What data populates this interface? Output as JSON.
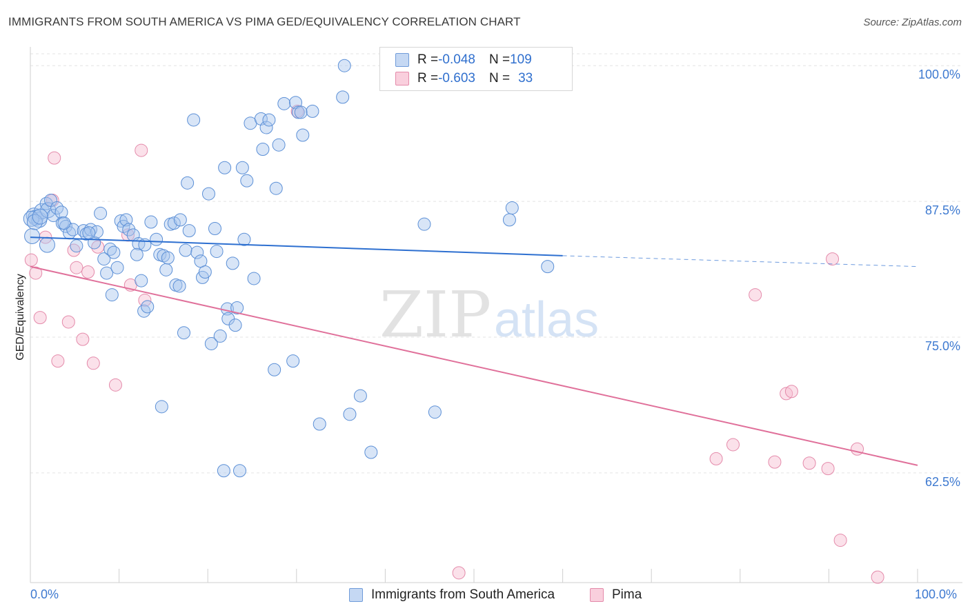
{
  "title": "IMMIGRANTS FROM SOUTH AMERICA VS PIMA GED/EQUIVALENCY CORRELATION CHART",
  "source": "Source: ZipAtlas.com",
  "watermark": {
    "zip": "ZIP",
    "atlas": "atlas"
  },
  "legend": {
    "rows": [
      {
        "r_label": "R = ",
        "r_value": "-0.048",
        "n_label": "N = ",
        "n_value": "109"
      },
      {
        "r_label": "R = ",
        "r_value": "-0.603",
        "n_label": "N = ",
        "n_value": "33"
      }
    ]
  },
  "colors": {
    "series_a_fill": "#a9c6ee",
    "series_a_stroke": "#5b8fd6",
    "series_a_line": "#2d6fd0",
    "series_b_fill": "#f6bcd0",
    "series_b_stroke": "#e48aaa",
    "series_b_line": "#e0709a",
    "axis_label": "#3d79d0",
    "grid": "#e3e3e3"
  },
  "chart_data": {
    "type": "scatter",
    "title": "IMMIGRANTS FROM SOUTH AMERICA VS PIMA GED/EQUIVALENCY CORRELATION CHART",
    "xlabel": "",
    "ylabel": "GED/Equivalency",
    "xlim": [
      0,
      100
    ],
    "ylim": [
      52.4,
      101.6
    ],
    "x_tick_labels": [
      "0.0%",
      "100.0%"
    ],
    "y_ticks": [
      62.5,
      75.0,
      87.5,
      100.0
    ],
    "y_tick_labels": [
      "62.5%",
      "75.0%",
      "87.5%",
      "100.0%"
    ],
    "grid": true,
    "legend_position": "top-center",
    "series": [
      {
        "name": "Immigrants from South America",
        "r": -0.048,
        "n": 109,
        "trend": {
          "x": [
            0,
            60
          ],
          "y": [
            84.2,
            82.5
          ],
          "dashed_to": [
            100,
            81.5
          ]
        },
        "points": [
          [
            0.2,
            84.3
          ],
          [
            0.4,
            86.2
          ],
          [
            0.6,
            86.0
          ],
          [
            1.0,
            85.8
          ],
          [
            1.3,
            86.6
          ],
          [
            1.8,
            87.3
          ],
          [
            2.0,
            86.7
          ],
          [
            2.3,
            87.6
          ],
          [
            2.6,
            86.2
          ],
          [
            3.0,
            86.9
          ],
          [
            3.5,
            86.5
          ],
          [
            3.6,
            85.5
          ],
          [
            4.0,
            85.2
          ],
          [
            1.9,
            83.5
          ],
          [
            4.4,
            84.6
          ],
          [
            4.8,
            84.9
          ],
          [
            5.2,
            83.4
          ],
          [
            6.0,
            84.8
          ],
          [
            6.3,
            84.5
          ],
          [
            6.8,
            84.9
          ],
          [
            7.2,
            83.7
          ],
          [
            7.5,
            84.7
          ],
          [
            7.9,
            86.4
          ],
          [
            8.3,
            82.2
          ],
          [
            8.6,
            80.9
          ],
          [
            9.0,
            83.1
          ],
          [
            9.2,
            78.9
          ],
          [
            9.8,
            81.4
          ],
          [
            10.2,
            85.7
          ],
          [
            10.5,
            85.2
          ],
          [
            10.8,
            85.8
          ],
          [
            11.1,
            84.9
          ],
          [
            11.6,
            84.4
          ],
          [
            12.2,
            83.6
          ],
          [
            12.5,
            80.2
          ],
          [
            12.9,
            83.5
          ],
          [
            12.8,
            77.4
          ],
          [
            13.2,
            77.8
          ],
          [
            13.6,
            85.6
          ],
          [
            14.2,
            84.0
          ],
          [
            14.6,
            82.6
          ],
          [
            14.8,
            68.6
          ],
          [
            15.0,
            82.5
          ],
          [
            15.3,
            81.2
          ],
          [
            15.5,
            82.3
          ],
          [
            15.8,
            85.4
          ],
          [
            16.2,
            85.5
          ],
          [
            16.4,
            79.8
          ],
          [
            16.8,
            79.7
          ],
          [
            16.9,
            85.8
          ],
          [
            17.3,
            75.4
          ],
          [
            17.5,
            83.0
          ],
          [
            17.9,
            84.8
          ],
          [
            17.7,
            89.2
          ],
          [
            18.4,
            95.0
          ],
          [
            18.8,
            82.8
          ],
          [
            19.2,
            82.0
          ],
          [
            19.4,
            80.5
          ],
          [
            19.7,
            81.0
          ],
          [
            20.1,
            88.2
          ],
          [
            20.4,
            74.4
          ],
          [
            20.8,
            85.0
          ],
          [
            21.0,
            82.9
          ],
          [
            21.4,
            75.1
          ],
          [
            21.8,
            62.7
          ],
          [
            21.9,
            90.6
          ],
          [
            22.2,
            77.6
          ],
          [
            22.3,
            76.7
          ],
          [
            22.8,
            81.8
          ],
          [
            23.1,
            76.1
          ],
          [
            23.3,
            77.7
          ],
          [
            23.6,
            62.7
          ],
          [
            23.9,
            90.6
          ],
          [
            24.1,
            84.0
          ],
          [
            24.4,
            89.4
          ],
          [
            24.8,
            94.7
          ],
          [
            25.2,
            80.4
          ],
          [
            26.0,
            95.1
          ],
          [
            26.2,
            92.3
          ],
          [
            26.6,
            94.3
          ],
          [
            26.9,
            95.0
          ],
          [
            27.5,
            72.0
          ],
          [
            27.7,
            88.7
          ],
          [
            28.0,
            92.7
          ],
          [
            28.6,
            96.5
          ],
          [
            29.6,
            72.8
          ],
          [
            29.9,
            96.6
          ],
          [
            30.2,
            95.7
          ],
          [
            30.5,
            95.7
          ],
          [
            30.7,
            93.6
          ],
          [
            31.8,
            95.8
          ],
          [
            32.6,
            67.0
          ],
          [
            35.4,
            100.0
          ],
          [
            35.2,
            97.1
          ],
          [
            36.0,
            67.9
          ],
          [
            37.2,
            69.6
          ],
          [
            38.4,
            64.4
          ],
          [
            44.4,
            85.4
          ],
          [
            45.6,
            68.1
          ],
          [
            54.0,
            85.8
          ],
          [
            54.3,
            86.9
          ],
          [
            58.3,
            81.5
          ],
          [
            0.1,
            85.9
          ],
          [
            0.5,
            85.6
          ],
          [
            1.1,
            86.1
          ],
          [
            3.8,
            85.5
          ],
          [
            6.6,
            84.6
          ],
          [
            9.4,
            82.8
          ],
          [
            12.0,
            82.6
          ]
        ],
        "point_sizes_note": "large markers near x=0-2"
      },
      {
        "name": "Pima",
        "r": -0.603,
        "n": 33,
        "trend": {
          "x": [
            0,
            100
          ],
          "y": [
            81.5,
            63.2
          ]
        },
        "points": [
          [
            0.1,
            82.1
          ],
          [
            0.6,
            80.9
          ],
          [
            1.1,
            76.8
          ],
          [
            1.7,
            84.2
          ],
          [
            2.5,
            87.6
          ],
          [
            2.7,
            91.5
          ],
          [
            3.1,
            72.8
          ],
          [
            4.3,
            76.4
          ],
          [
            4.9,
            83.0
          ],
          [
            5.2,
            81.4
          ],
          [
            5.9,
            74.8
          ],
          [
            6.5,
            81.0
          ],
          [
            7.1,
            72.6
          ],
          [
            7.6,
            83.3
          ],
          [
            9.6,
            70.6
          ],
          [
            11.0,
            84.4
          ],
          [
            11.3,
            79.8
          ],
          [
            12.5,
            92.2
          ],
          [
            12.9,
            78.4
          ],
          [
            30.1,
            95.8
          ],
          [
            48.3,
            53.3
          ],
          [
            77.3,
            63.8
          ],
          [
            79.2,
            65.1
          ],
          [
            81.7,
            78.9
          ],
          [
            83.9,
            63.5
          ],
          [
            85.2,
            69.8
          ],
          [
            85.8,
            70.0
          ],
          [
            87.8,
            63.4
          ],
          [
            89.9,
            62.9
          ],
          [
            90.4,
            82.2
          ],
          [
            91.3,
            56.3
          ],
          [
            93.2,
            64.7
          ],
          [
            95.5,
            52.9
          ]
        ]
      }
    ]
  },
  "bottom_legend": {
    "series_a_label": "Immigrants from South America",
    "series_b_label": "Pima"
  }
}
